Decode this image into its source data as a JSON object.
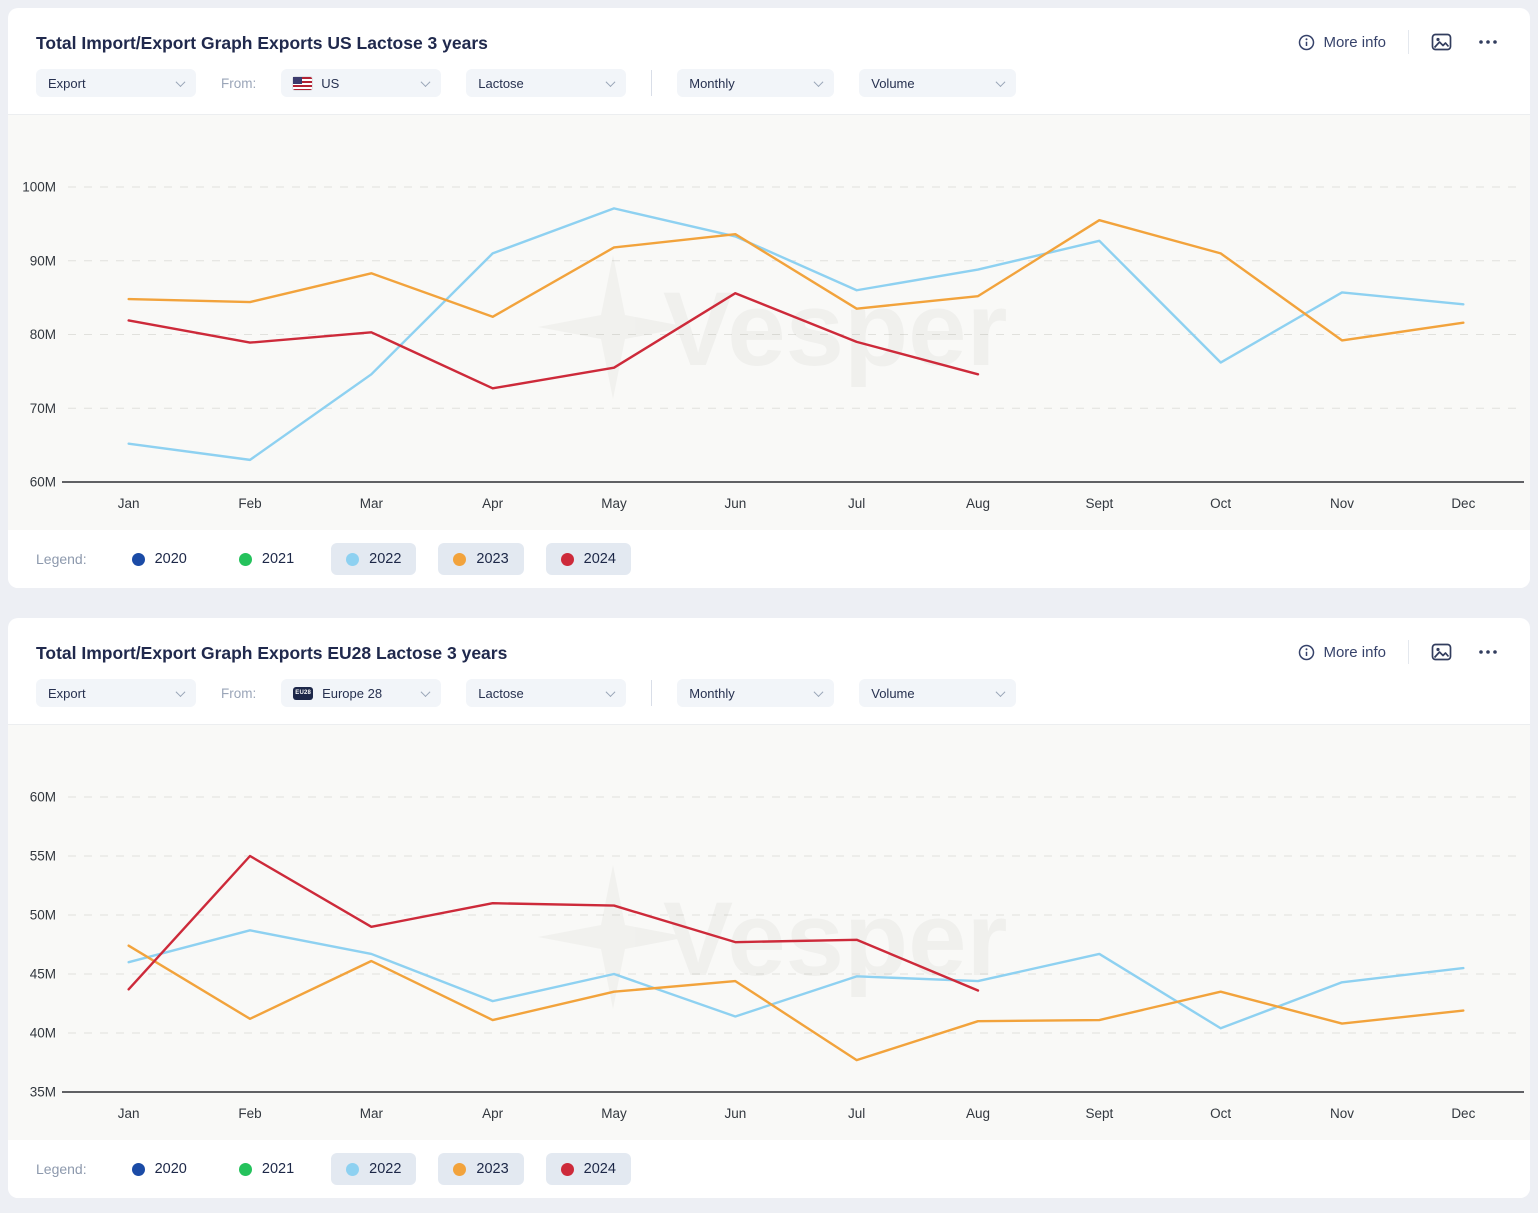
{
  "watermark": "Vesper",
  "panels": [
    {
      "title": "Total Import/Export Graph Exports US Lactose 3 years",
      "actions": {
        "more_info": "More info"
      },
      "filters": {
        "flow": "Export",
        "from_label": "From:",
        "origin": "US",
        "product": "Lactose",
        "frequency": "Monthly",
        "measure": "Volume"
      },
      "legend": {
        "label": "Legend:",
        "items": [
          {
            "year": "2020",
            "color": "#1b4ba6",
            "active": false
          },
          {
            "year": "2021",
            "color": "#25c25c",
            "active": false
          },
          {
            "year": "2022",
            "color": "#8ed1f1",
            "active": true
          },
          {
            "year": "2023",
            "color": "#f2a33c",
            "active": true
          },
          {
            "year": "2024",
            "color": "#cd2a3a",
            "active": true
          }
        ]
      }
    },
    {
      "title": "Total Import/Export Graph Exports EU28 Lactose 3 years",
      "actions": {
        "more_info": "More info"
      },
      "filters": {
        "flow": "Export",
        "from_label": "From:",
        "origin": "Europe 28",
        "origin_badge": "EU28",
        "product": "Lactose",
        "frequency": "Monthly",
        "measure": "Volume"
      },
      "legend": {
        "label": "Legend:",
        "items": [
          {
            "year": "2020",
            "color": "#1b4ba6",
            "active": false
          },
          {
            "year": "2021",
            "color": "#25c25c",
            "active": false
          },
          {
            "year": "2022",
            "color": "#8ed1f1",
            "active": true
          },
          {
            "year": "2023",
            "color": "#f2a33c",
            "active": true
          },
          {
            "year": "2024",
            "color": "#cd2a3a",
            "active": true
          }
        ]
      }
    }
  ],
  "chart_data": [
    {
      "type": "line",
      "title": "Total Import/Export Graph Exports US Lactose 3 years",
      "xlabel": "",
      "ylabel": "Volume",
      "unit": "M",
      "grid": "horizontal-dashed",
      "legend_position": "bottom",
      "ylim": [
        60,
        100
      ],
      "yticks": [
        60,
        70,
        80,
        90,
        100
      ],
      "ytick_labels": [
        "60M",
        "70M",
        "80M",
        "90M",
        "100M"
      ],
      "categories": [
        "Jan",
        "Feb",
        "Mar",
        "Apr",
        "May",
        "Jun",
        "Jul",
        "Aug",
        "Sept",
        "Oct",
        "Nov",
        "Dec"
      ],
      "series": [
        {
          "name": "2022",
          "color": "#8ed1f1",
          "values": [
            65.2,
            63.0,
            74.6,
            91.0,
            97.1,
            93.3,
            86.0,
            88.8,
            92.7,
            76.2,
            85.7,
            84.1
          ]
        },
        {
          "name": "2023",
          "color": "#f2a33c",
          "values": [
            84.8,
            84.4,
            88.3,
            82.4,
            91.8,
            93.6,
            83.5,
            85.2,
            95.5,
            91.0,
            79.2,
            81.6
          ]
        },
        {
          "name": "2024",
          "color": "#cd2a3a",
          "values": [
            81.9,
            78.9,
            80.3,
            72.7,
            75.5,
            85.6,
            79.0,
            74.6
          ]
        }
      ]
    },
    {
      "type": "line",
      "title": "Total Import/Export Graph Exports EU28 Lactose 3 years",
      "xlabel": "",
      "ylabel": "Volume",
      "unit": "M",
      "grid": "horizontal-dashed",
      "legend_position": "bottom",
      "ylim": [
        35,
        60
      ],
      "yticks": [
        35,
        40,
        45,
        50,
        55,
        60
      ],
      "ytick_labels": [
        "35M",
        "40M",
        "45M",
        "50M",
        "55M",
        "60M"
      ],
      "categories": [
        "Jan",
        "Feb",
        "Mar",
        "Apr",
        "May",
        "Jun",
        "Jul",
        "Aug",
        "Sept",
        "Oct",
        "Nov",
        "Dec"
      ],
      "series": [
        {
          "name": "2022",
          "color": "#8ed1f1",
          "values": [
            46.0,
            48.7,
            46.7,
            42.7,
            45.0,
            41.4,
            44.8,
            44.4,
            46.7,
            40.4,
            44.3,
            45.5
          ]
        },
        {
          "name": "2023",
          "color": "#f2a33c",
          "values": [
            47.4,
            41.2,
            46.1,
            41.1,
            43.5,
            44.4,
            37.7,
            41.0,
            41.1,
            43.5,
            40.8,
            41.9
          ]
        },
        {
          "name": "2024",
          "color": "#cd2a3a",
          "values": [
            43.7,
            55.0,
            49.0,
            51.0,
            50.8,
            47.7,
            47.9,
            43.6
          ]
        }
      ]
    }
  ]
}
